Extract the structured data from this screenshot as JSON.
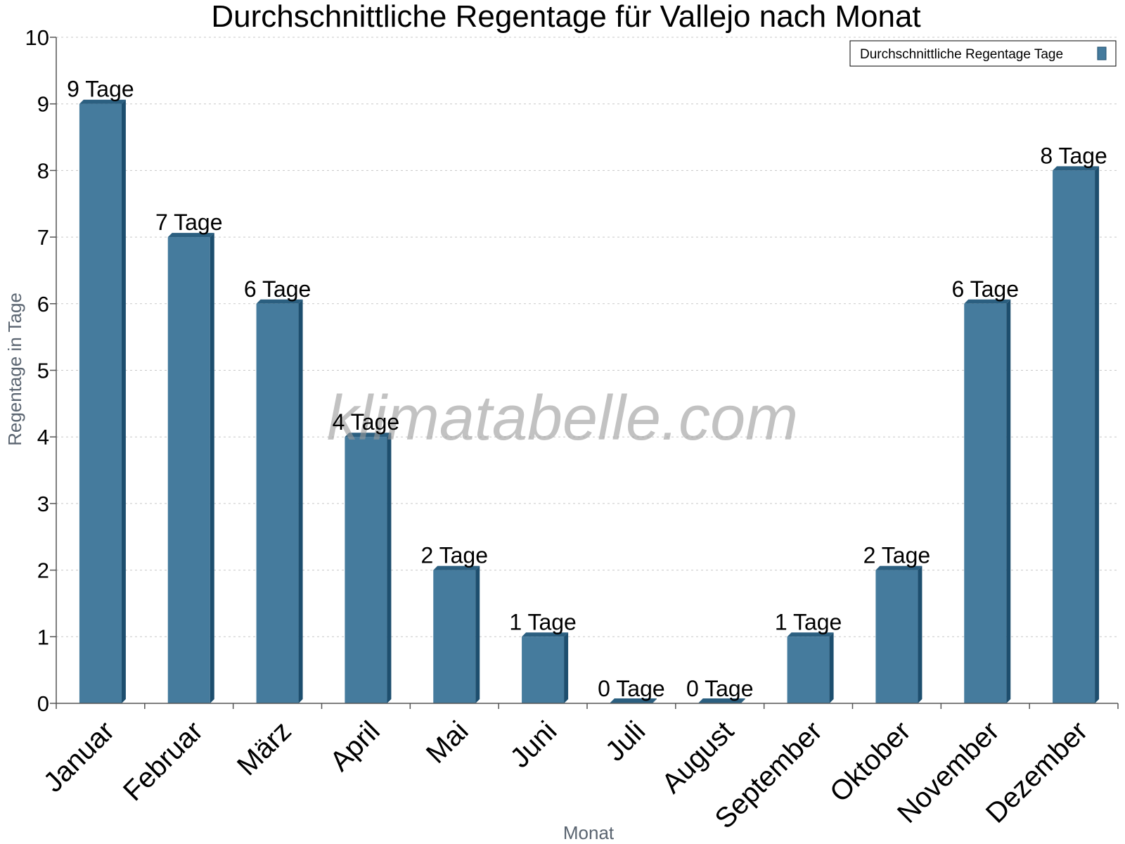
{
  "chart_data": {
    "type": "bar",
    "title": "Durchschnittliche Regentage für Vallejo nach Monat",
    "xlabel": "Monat",
    "ylabel": "Regentage in Tage",
    "categories": [
      "Januar",
      "Februar",
      "März",
      "April",
      "Mai",
      "Juni",
      "Juli",
      "August",
      "September",
      "Oktober",
      "November",
      "Dezember"
    ],
    "series": [
      {
        "name": "Durchschnittliche Regentage Tage",
        "values": [
          9,
          7,
          6,
          4,
          2,
          1,
          0,
          0,
          1,
          2,
          6,
          8
        ],
        "data_labels": [
          "9 Tage",
          "7 Tage",
          "6 Tage",
          "4 Tage",
          "2 Tage",
          "1 Tage",
          "0 Tage",
          "0 Tage",
          "1 Tage",
          "2 Tage",
          "6 Tage",
          "8 Tage"
        ]
      }
    ],
    "ylim": [
      0,
      10
    ],
    "yticks": [
      0,
      1,
      2,
      3,
      4,
      5,
      6,
      7,
      8,
      9,
      10
    ],
    "grid": true,
    "legend_position": "top-right",
    "watermark": "klimatabelle.com",
    "colors": {
      "bar_front": "#457b9d",
      "bar_side": "#1d4e6e",
      "bar_top": "#2b5f80",
      "grid": "#c8c8c8",
      "axis": "#555555",
      "axis_label": "#5a6470"
    }
  }
}
